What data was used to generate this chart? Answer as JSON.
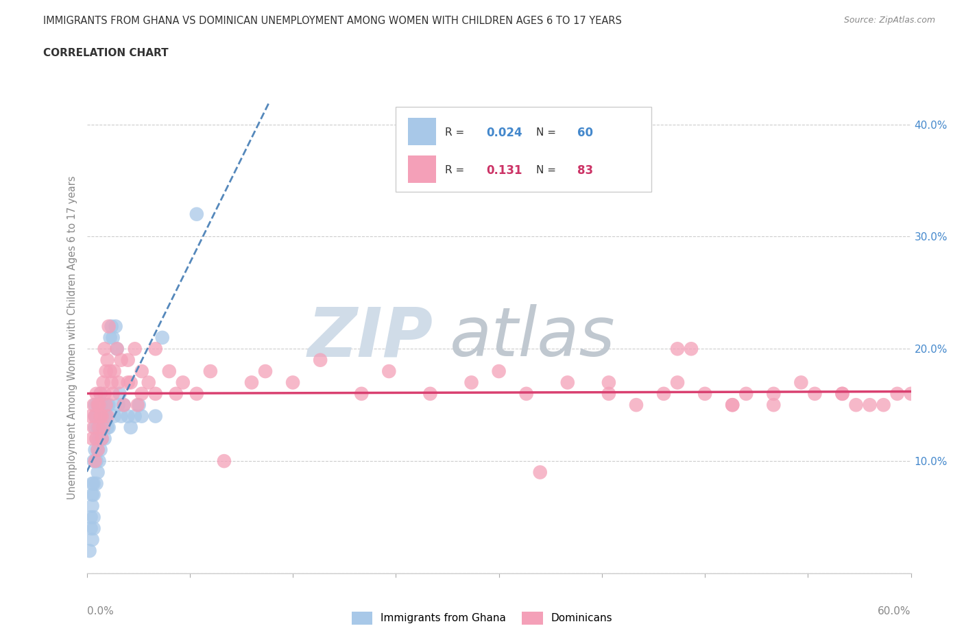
{
  "title": "IMMIGRANTS FROM GHANA VS DOMINICAN UNEMPLOYMENT AMONG WOMEN WITH CHILDREN AGES 6 TO 17 YEARS",
  "subtitle": "CORRELATION CHART",
  "source": "Source: ZipAtlas.com",
  "ylabel": "Unemployment Among Women with Children Ages 6 to 17 years",
  "xlim": [
    0,
    0.6
  ],
  "ylim": [
    0,
    0.42
  ],
  "yticks": [
    0,
    0.1,
    0.2,
    0.3,
    0.4
  ],
  "ytick_labels_right": [
    "",
    "10.0%",
    "20.0%",
    "30.0%",
    "40.0%"
  ],
  "ghana_R": 0.024,
  "ghana_N": 60,
  "dominican_R": 0.131,
  "dominican_N": 83,
  "ghana_color": "#a8c8e8",
  "dominican_color": "#f4a0b8",
  "ghana_trend_color": "#5588bb",
  "dominican_trend_color": "#d94070",
  "ghana_scatter_x": [
    0.002,
    0.003,
    0.003,
    0.004,
    0.004,
    0.004,
    0.004,
    0.005,
    0.005,
    0.005,
    0.005,
    0.005,
    0.006,
    0.006,
    0.006,
    0.006,
    0.007,
    0.007,
    0.007,
    0.007,
    0.008,
    0.008,
    0.008,
    0.008,
    0.009,
    0.009,
    0.009,
    0.01,
    0.01,
    0.01,
    0.01,
    0.011,
    0.011,
    0.012,
    0.012,
    0.013,
    0.013,
    0.014,
    0.015,
    0.015,
    0.016,
    0.016,
    0.017,
    0.018,
    0.019,
    0.02,
    0.021,
    0.022,
    0.023,
    0.024,
    0.025,
    0.027,
    0.03,
    0.032,
    0.035,
    0.038,
    0.04,
    0.05,
    0.055,
    0.08
  ],
  "ghana_scatter_y": [
    0.02,
    0.04,
    0.05,
    0.03,
    0.06,
    0.07,
    0.08,
    0.04,
    0.05,
    0.07,
    0.08,
    0.1,
    0.11,
    0.13,
    0.14,
    0.15,
    0.08,
    0.1,
    0.12,
    0.14,
    0.09,
    0.11,
    0.13,
    0.15,
    0.1,
    0.12,
    0.14,
    0.11,
    0.13,
    0.15,
    0.16,
    0.12,
    0.14,
    0.13,
    0.15,
    0.12,
    0.14,
    0.14,
    0.13,
    0.15,
    0.13,
    0.15,
    0.21,
    0.22,
    0.21,
    0.14,
    0.22,
    0.2,
    0.15,
    0.16,
    0.14,
    0.15,
    0.14,
    0.13,
    0.14,
    0.15,
    0.14,
    0.14,
    0.21,
    0.32
  ],
  "dominican_scatter_x": [
    0.003,
    0.004,
    0.005,
    0.005,
    0.006,
    0.006,
    0.007,
    0.007,
    0.008,
    0.008,
    0.009,
    0.009,
    0.01,
    0.01,
    0.011,
    0.011,
    0.012,
    0.012,
    0.013,
    0.013,
    0.014,
    0.014,
    0.015,
    0.015,
    0.016,
    0.017,
    0.018,
    0.019,
    0.02,
    0.022,
    0.023,
    0.025,
    0.027,
    0.03,
    0.03,
    0.032,
    0.035,
    0.037,
    0.04,
    0.04,
    0.045,
    0.05,
    0.05,
    0.06,
    0.065,
    0.07,
    0.08,
    0.09,
    0.1,
    0.12,
    0.13,
    0.15,
    0.17,
    0.2,
    0.22,
    0.25,
    0.28,
    0.3,
    0.32,
    0.35,
    0.38,
    0.4,
    0.43,
    0.45,
    0.47,
    0.48,
    0.5,
    0.52,
    0.53,
    0.55,
    0.56,
    0.58,
    0.59,
    0.44,
    0.47,
    0.38,
    0.42,
    0.5,
    0.55,
    0.57,
    0.33,
    0.6,
    0.43
  ],
  "dominican_scatter_y": [
    0.14,
    0.12,
    0.13,
    0.15,
    0.1,
    0.14,
    0.12,
    0.16,
    0.11,
    0.15,
    0.13,
    0.15,
    0.14,
    0.16,
    0.12,
    0.14,
    0.13,
    0.17,
    0.16,
    0.2,
    0.15,
    0.18,
    0.14,
    0.19,
    0.22,
    0.18,
    0.17,
    0.16,
    0.18,
    0.2,
    0.17,
    0.19,
    0.15,
    0.17,
    0.19,
    0.17,
    0.2,
    0.15,
    0.16,
    0.18,
    0.17,
    0.2,
    0.16,
    0.18,
    0.16,
    0.17,
    0.16,
    0.18,
    0.1,
    0.17,
    0.18,
    0.17,
    0.19,
    0.16,
    0.18,
    0.16,
    0.17,
    0.18,
    0.16,
    0.17,
    0.16,
    0.15,
    0.17,
    0.16,
    0.15,
    0.16,
    0.16,
    0.17,
    0.16,
    0.16,
    0.15,
    0.15,
    0.16,
    0.2,
    0.15,
    0.17,
    0.16,
    0.15,
    0.16,
    0.15,
    0.09,
    0.16,
    0.2
  ],
  "watermark_zip_color": "#d0dce8",
  "watermark_atlas_color": "#c0c8d0",
  "background_color": "#ffffff",
  "grid_color": "#cccccc",
  "title_color": "#404040",
  "axis_label_color": "#888888",
  "right_axis_color": "#4488cc",
  "legend_label_color": "#333333",
  "ghana_legend_color": "#4488cc",
  "dominican_legend_color": "#cc3366"
}
